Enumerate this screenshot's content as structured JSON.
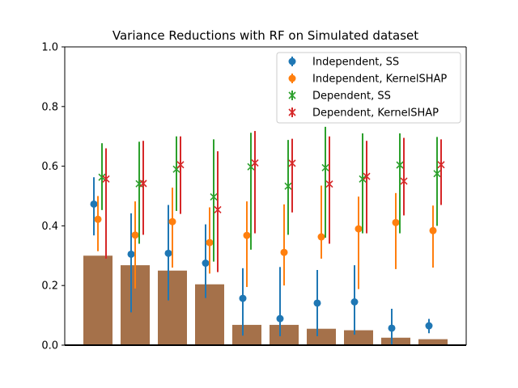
{
  "chart_data": {
    "type": "bar+errorbar",
    "title": "Variance Reductions with RF on Simulated dataset",
    "xlabel": "",
    "ylabel": "",
    "ylim": [
      0,
      1.0
    ],
    "yticks": [
      "0.0",
      "0.2",
      "0.4",
      "0.6",
      "0.8",
      "1.0"
    ],
    "bar_color": "#a5714a",
    "bars": [
      0.3,
      0.268,
      0.25,
      0.204,
      0.068,
      0.068,
      0.055,
      0.05,
      0.025,
      0.02
    ],
    "legend_position": "top-right",
    "series": [
      {
        "name": "Independent, SS",
        "color": "#1f77b4",
        "marker": "circle",
        "means": [
          0.473,
          0.305,
          0.308,
          0.275,
          0.157,
          0.089,
          0.141,
          0.145,
          0.057,
          0.065
        ],
        "lows": [
          0.368,
          0.11,
          0.15,
          0.158,
          0.032,
          0.03,
          0.03,
          0.035,
          0.0,
          0.04
        ],
        "highs": [
          0.563,
          0.442,
          0.47,
          0.405,
          0.258,
          0.262,
          0.252,
          0.268,
          0.122,
          0.088
        ]
      },
      {
        "name": "Independent, KernelSHAP",
        "color": "#ff7f0e",
        "marker": "circle",
        "means": [
          0.422,
          0.369,
          0.414,
          0.344,
          0.368,
          0.311,
          0.363,
          0.39,
          0.411,
          0.384
        ],
        "lows": [
          0.315,
          0.19,
          0.26,
          0.24,
          0.195,
          0.2,
          0.29,
          0.188,
          0.255,
          0.26
        ],
        "highs": [
          0.5,
          0.482,
          0.528,
          0.462,
          0.482,
          0.472,
          0.535,
          0.498,
          0.51,
          0.468
        ]
      },
      {
        "name": "Dependent, SS",
        "color": "#2ca02c",
        "marker": "x",
        "means": [
          0.563,
          0.541,
          0.59,
          0.497,
          0.598,
          0.533,
          0.595,
          0.557,
          0.604,
          0.575
        ],
        "lows": [
          0.453,
          0.34,
          0.45,
          0.28,
          0.32,
          0.37,
          0.36,
          0.375,
          0.375,
          0.4
        ],
        "highs": [
          0.677,
          0.682,
          0.7,
          0.69,
          0.712,
          0.688,
          0.732,
          0.71,
          0.71,
          0.698
        ]
      },
      {
        "name": "Dependent, KernelSHAP",
        "color": "#d62728",
        "marker": "x",
        "means": [
          0.557,
          0.542,
          0.605,
          0.454,
          0.611,
          0.61,
          0.54,
          0.566,
          0.55,
          0.605
        ],
        "lows": [
          0.29,
          0.37,
          0.44,
          0.245,
          0.375,
          0.445,
          0.34,
          0.375,
          0.435,
          0.47
        ],
        "highs": [
          0.66,
          0.685,
          0.7,
          0.65,
          0.718,
          0.692,
          0.7,
          0.685,
          0.695,
          0.69
        ]
      }
    ]
  }
}
